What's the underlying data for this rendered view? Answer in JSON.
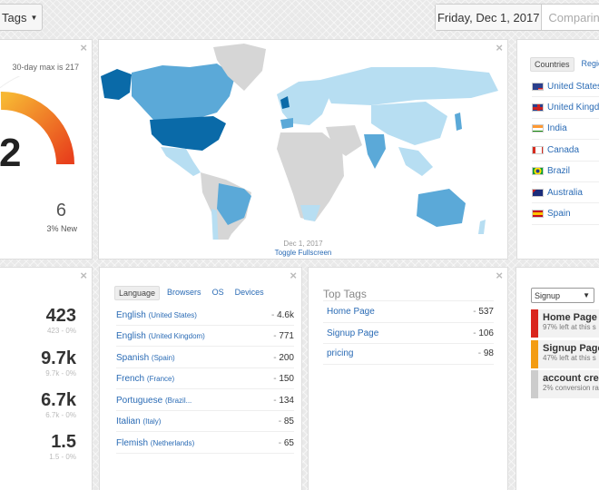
{
  "toolbar": {
    "tags_label": "Tags",
    "date": "Friday, Dec 1, 2017",
    "comparing": "Comparing"
  },
  "gauge": {
    "max_text": "30-day max is 217",
    "value": "2",
    "new_count": "6",
    "new_pct": "3% New",
    "color_start": "#f7b733",
    "color_end": "#e8401c"
  },
  "map": {
    "date": "Dec 1, 2017",
    "toggle": "Toggle Fullscreen"
  },
  "countries": {
    "tabs": [
      "Countries",
      "Regions"
    ],
    "items": [
      {
        "name": "United States",
        "flag": "flag-us"
      },
      {
        "name": "United Kingdom",
        "flag": "flag-uk"
      },
      {
        "name": "India",
        "flag": "flag-in"
      },
      {
        "name": "Canada",
        "flag": "flag-ca"
      },
      {
        "name": "Brazil",
        "flag": "flag-br"
      },
      {
        "name": "Australia",
        "flag": "flag-au"
      },
      {
        "name": "Spain",
        "flag": "flag-es"
      }
    ]
  },
  "stats": [
    {
      "value": "423",
      "sub": "423 - 0%"
    },
    {
      "value": "9.7k",
      "sub": "9.7k - 0%"
    },
    {
      "value": "6.7k",
      "sub": "6.7k - 0%"
    },
    {
      "value": "1.5",
      "sub": "1.5 - 0%"
    }
  ],
  "language": {
    "tabs": [
      "Language",
      "Browsers",
      "OS",
      "Devices"
    ],
    "rows": [
      {
        "name": "English",
        "sub": "(United States)",
        "value": "4.6k"
      },
      {
        "name": "English",
        "sub": "(United Kingdom)",
        "value": "771"
      },
      {
        "name": "Spanish",
        "sub": "(Spain)",
        "value": "200"
      },
      {
        "name": "French",
        "sub": "(France)",
        "value": "150"
      },
      {
        "name": "Portuguese",
        "sub": "(Brazil...",
        "value": "134"
      },
      {
        "name": "Italian",
        "sub": "(Italy)",
        "value": "85"
      },
      {
        "name": "Flemish",
        "sub": "(Netherlands)",
        "value": "65"
      }
    ]
  },
  "top_tags": {
    "title": "Top Tags",
    "rows": [
      {
        "name": "Home Page",
        "value": "537"
      },
      {
        "name": "Signup Page",
        "value": "106"
      },
      {
        "name": "pricing",
        "value": "98"
      }
    ]
  },
  "funnel": {
    "select_value": "Signup",
    "steps": [
      {
        "title": "Home Page",
        "desc": "97% left at this s",
        "color": "#d9251d"
      },
      {
        "title": "Signup Page",
        "desc": "47% left at this s",
        "color": "#f39c12"
      },
      {
        "title": "account crea",
        "desc": "2% conversion ra",
        "color": "#cccccc"
      }
    ]
  },
  "colors": {
    "link": "#2a6bb5",
    "map_dark": "#0a6aa8",
    "map_mid": "#5ba9d8",
    "map_light": "#b7def2",
    "map_none": "#d6d6d6"
  }
}
